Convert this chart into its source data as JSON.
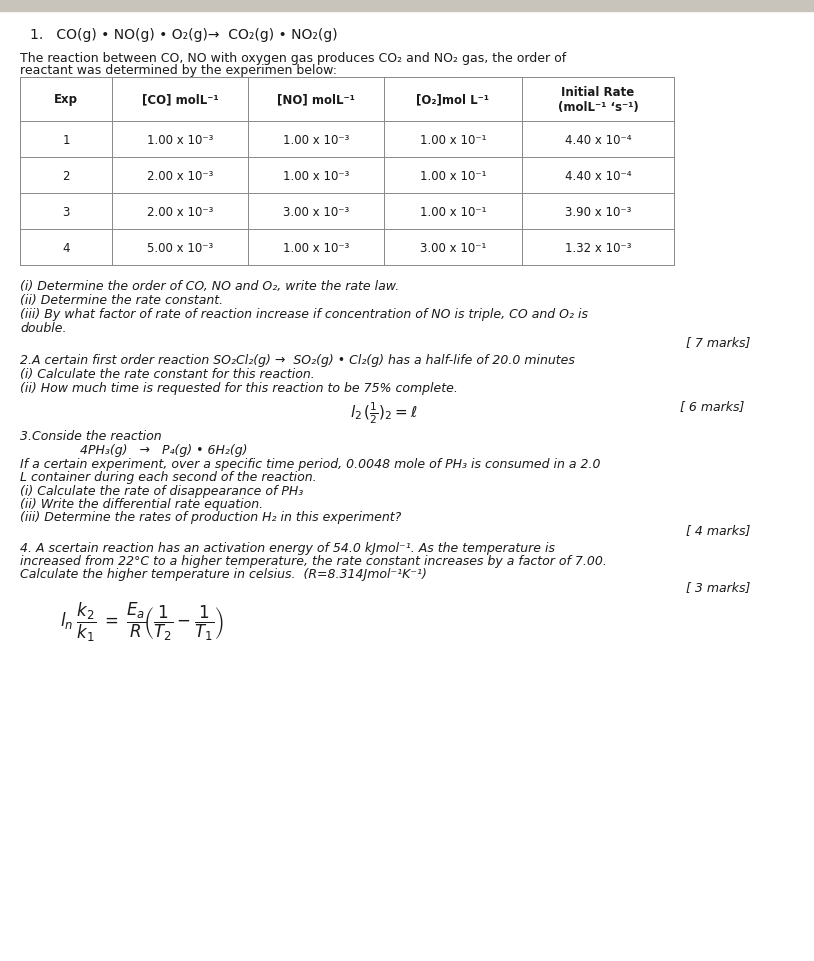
{
  "bg_color": "#ffffff",
  "top_bar_color": "#c8c4bc",
  "top_bar_height": 12,
  "title_line": "1.   CO(g) • NO(g) • O₂(g)→  CO₂(g) • NO₂(g)",
  "intro_line1": "The reaction between CO, NO with oxygen gas produces CO₂ and NO₂ gas, the order of",
  "intro_line2": "reactant was determined by the experimen below:",
  "table_headers": [
    "Exp",
    "[CO] molL⁻¹",
    "[NO] molL⁻¹",
    "[O₂]mol L⁻¹",
    "Initial Rate\n(molL⁻¹ ‘s⁻¹)"
  ],
  "table_data": [
    [
      "1",
      "1.00 x 10⁻³",
      "1.00 x 10⁻³",
      "1.00 x 10⁻¹",
      "4.40 x 10⁻⁴"
    ],
    [
      "2",
      "2.00 x 10⁻³",
      "1.00 x 10⁻³",
      "1.00 x 10⁻¹",
      "4.40 x 10⁻⁴"
    ],
    [
      "3",
      "2.00 x 10⁻³",
      "3.00 x 10⁻³",
      "1.00 x 10⁻¹",
      "3.90 x 10⁻³"
    ],
    [
      "4",
      "5.00 x 10⁻³",
      "1.00 x 10⁻³",
      "3.00 x 10⁻¹",
      "1.32 x 10⁻³"
    ]
  ],
  "q1_parts": [
    "(i) Determine the order of CO, NO and O₂, write the rate law.",
    "(ii) Determine the rate constant.",
    "(iii) By what factor of rate of reaction increase if concentration of NO is triple, CO and O₂ is",
    "double."
  ],
  "q1_marks": "[ 7 marks]",
  "q2_header": "2.A certain first order reaction SO₂Cl₂(g) →  SO₂(g) • Cl₂(g) has a half-life of 20.0 minutes",
  "q2_parts": [
    "(i) Calculate the rate constant for this reaction.",
    "(ii) How much time is requested for this reaction to be 75% complete."
  ],
  "q2_marks": "[ 6 marks]",
  "q3_header": "3.Conside the reaction",
  "q3_reaction": "4PH₃(g)   →   P₄(g) • 6H₂(g)",
  "q3_intro1": "If a certain experiment, over a specific time period, 0.0048 mole of PH₃ is consumed in a 2.0",
  "q3_intro2": "L container during each second of the reaction.",
  "q3_parts": [
    "(i) Calculate the rate of disappearance of PH₃",
    "(ii) Write the differential rate equation.",
    "(iii) Determine the rates of production H₂ in this experiment?"
  ],
  "q3_marks": "[ 4 marks]",
  "q4_line1": "4. A scertain reaction has an activation energy of 54.0 kJmol⁻¹. As the temperature is",
  "q4_line2": "increased from 22°C to a higher temperature, the rate constant increases by a factor of 7.00.",
  "q4_line3": "Calculate the higher temperature in celsius.  (R=8.314Jmol⁻¹K⁻¹)",
  "q4_marks": "[ 3 marks]",
  "text_color": "#1a1a1a",
  "table_line_color": "#888888"
}
